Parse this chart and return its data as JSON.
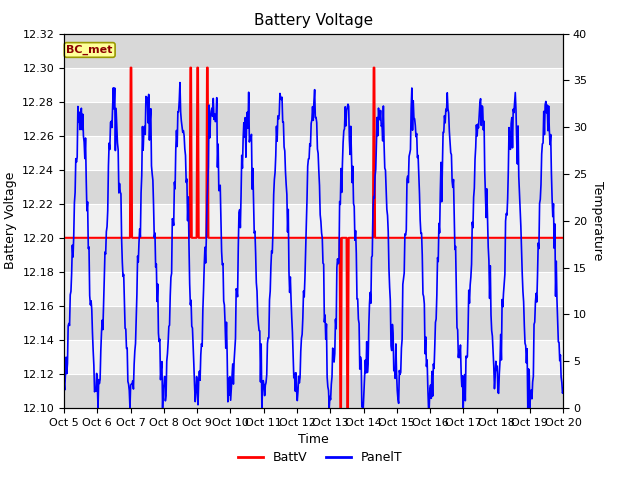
{
  "title": "Battery Voltage",
  "xlabel": "Time",
  "ylabel_left": "Battery Voltage",
  "ylabel_right": "Temperature",
  "ylim_left": [
    12.1,
    12.32
  ],
  "ylim_right": [
    0,
    40
  ],
  "xtick_labels": [
    "Oct 5",
    "Oct 6",
    "Oct 7",
    "Oct 8",
    "Oct 9",
    "Oct 10",
    "Oct 11",
    "Oct 12",
    "Oct 13",
    "Oct 14",
    "Oct 15",
    "Oct 16",
    "Oct 17",
    "Oct 18",
    "Oct 19",
    "Oct 20"
  ],
  "legend_label": "BC_met",
  "legend_box_color": "#FFFF99",
  "legend_box_border": "#999900",
  "batt_color": "#FF0000",
  "panel_color": "#0000FF",
  "plot_bg_light": "#F0F0F0",
  "band_color": "#D8D8D8",
  "title_fontsize": 11,
  "axis_label_fontsize": 9,
  "tick_fontsize": 8
}
